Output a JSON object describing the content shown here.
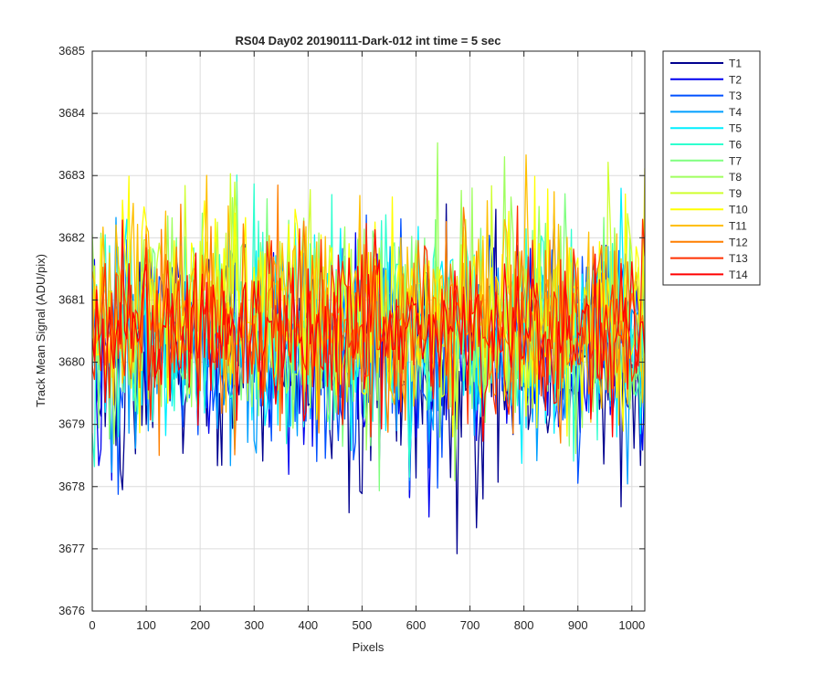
{
  "chart_data": {
    "type": "line",
    "title": "RS04 Day02 20190111-Dark-012 int time = 5 sec",
    "xlabel": "Pixels",
    "ylabel": "Track Mean Signal (ADU/pix)",
    "xlim": [
      0,
      1024
    ],
    "ylim": [
      3676,
      3685
    ],
    "xticks": [
      0,
      100,
      200,
      300,
      400,
      500,
      600,
      700,
      800,
      900,
      1000
    ],
    "yticks": [
      3676,
      3677,
      3678,
      3679,
      3680,
      3681,
      3682,
      3683,
      3684,
      3685
    ],
    "grid": true,
    "legend_position": "outside-top-right",
    "x_step": 4,
    "noise_description": "dense noisy traces per track, mean approximately 3680.5 ADU/pix, typical spread 3678 to 3683",
    "series": [
      {
        "name": "T1",
        "color": "#00008f",
        "mean": 3680.0,
        "amplitude": 2.2
      },
      {
        "name": "T2",
        "color": "#0000ef",
        "mean": 3680.1,
        "amplitude": 2.1
      },
      {
        "name": "T3",
        "color": "#0050ff",
        "mean": 3680.2,
        "amplitude": 2.0
      },
      {
        "name": "T4",
        "color": "#009fff",
        "mean": 3680.3,
        "amplitude": 2.0
      },
      {
        "name": "T5",
        "color": "#00efff",
        "mean": 3680.4,
        "amplitude": 2.0
      },
      {
        "name": "T6",
        "color": "#2fffcf",
        "mean": 3680.5,
        "amplitude": 2.0
      },
      {
        "name": "T7",
        "color": "#7fff7f",
        "mean": 3680.6,
        "amplitude": 2.0
      },
      {
        "name": "T8",
        "color": "#9fff5f",
        "mean": 3680.7,
        "amplitude": 2.0
      },
      {
        "name": "T9",
        "color": "#cfff2f",
        "mean": 3680.8,
        "amplitude": 2.0
      },
      {
        "name": "T10",
        "color": "#ffff00",
        "mean": 3680.9,
        "amplitude": 2.0
      },
      {
        "name": "T11",
        "color": "#ffbf00",
        "mean": 3680.8,
        "amplitude": 1.9
      },
      {
        "name": "T12",
        "color": "#ff7f00",
        "mean": 3680.7,
        "amplitude": 1.8
      },
      {
        "name": "T13",
        "color": "#ff3000",
        "mean": 3680.6,
        "amplitude": 1.7
      },
      {
        "name": "T14",
        "color": "#ff0000",
        "mean": 3680.5,
        "amplitude": 1.6
      }
    ]
  }
}
